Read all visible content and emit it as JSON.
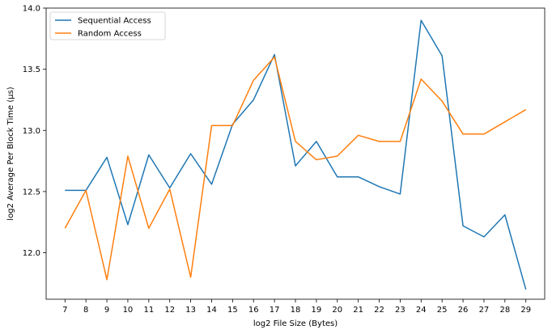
{
  "chart_data": {
    "type": "line",
    "title": "",
    "xlabel": "log2 File Size (Bytes)",
    "ylabel": "log2 Average Per Block Time (µs)",
    "x": [
      7,
      8,
      9,
      10,
      11,
      12,
      13,
      14,
      15,
      16,
      17,
      18,
      19,
      20,
      21,
      22,
      23,
      24,
      25,
      26,
      27,
      28,
      29
    ],
    "xticks": [
      "7",
      "8",
      "9",
      "10",
      "11",
      "12",
      "13",
      "14",
      "15",
      "16",
      "17",
      "18",
      "19",
      "20",
      "21",
      "22",
      "23",
      "24",
      "25",
      "26",
      "27",
      "28",
      "29"
    ],
    "yticks": [
      "12.0",
      "12.5",
      "13.0",
      "13.5",
      "14.0"
    ],
    "ylim": [
      11.62,
      14.0
    ],
    "xlim": [
      6.1,
      29.9
    ],
    "grid": false,
    "legend_position": "top-left",
    "series": [
      {
        "name": "Sequential Access",
        "color": "#1f77b4",
        "values": [
          12.51,
          12.51,
          12.78,
          12.23,
          12.8,
          12.53,
          12.81,
          12.56,
          13.05,
          13.25,
          13.62,
          12.71,
          12.91,
          12.62,
          12.62,
          12.54,
          12.48,
          13.9,
          13.61,
          12.22,
          12.13,
          12.31,
          11.7
        ]
      },
      {
        "name": "Random Access",
        "color": "#ff7f0e",
        "values": [
          12.2,
          12.51,
          11.78,
          12.79,
          12.2,
          12.52,
          11.8,
          13.04,
          13.04,
          13.41,
          13.6,
          12.91,
          12.76,
          12.79,
          12.96,
          12.91,
          12.91,
          13.42,
          13.24,
          12.97,
          12.97,
          13.07,
          13.17
        ]
      }
    ]
  }
}
